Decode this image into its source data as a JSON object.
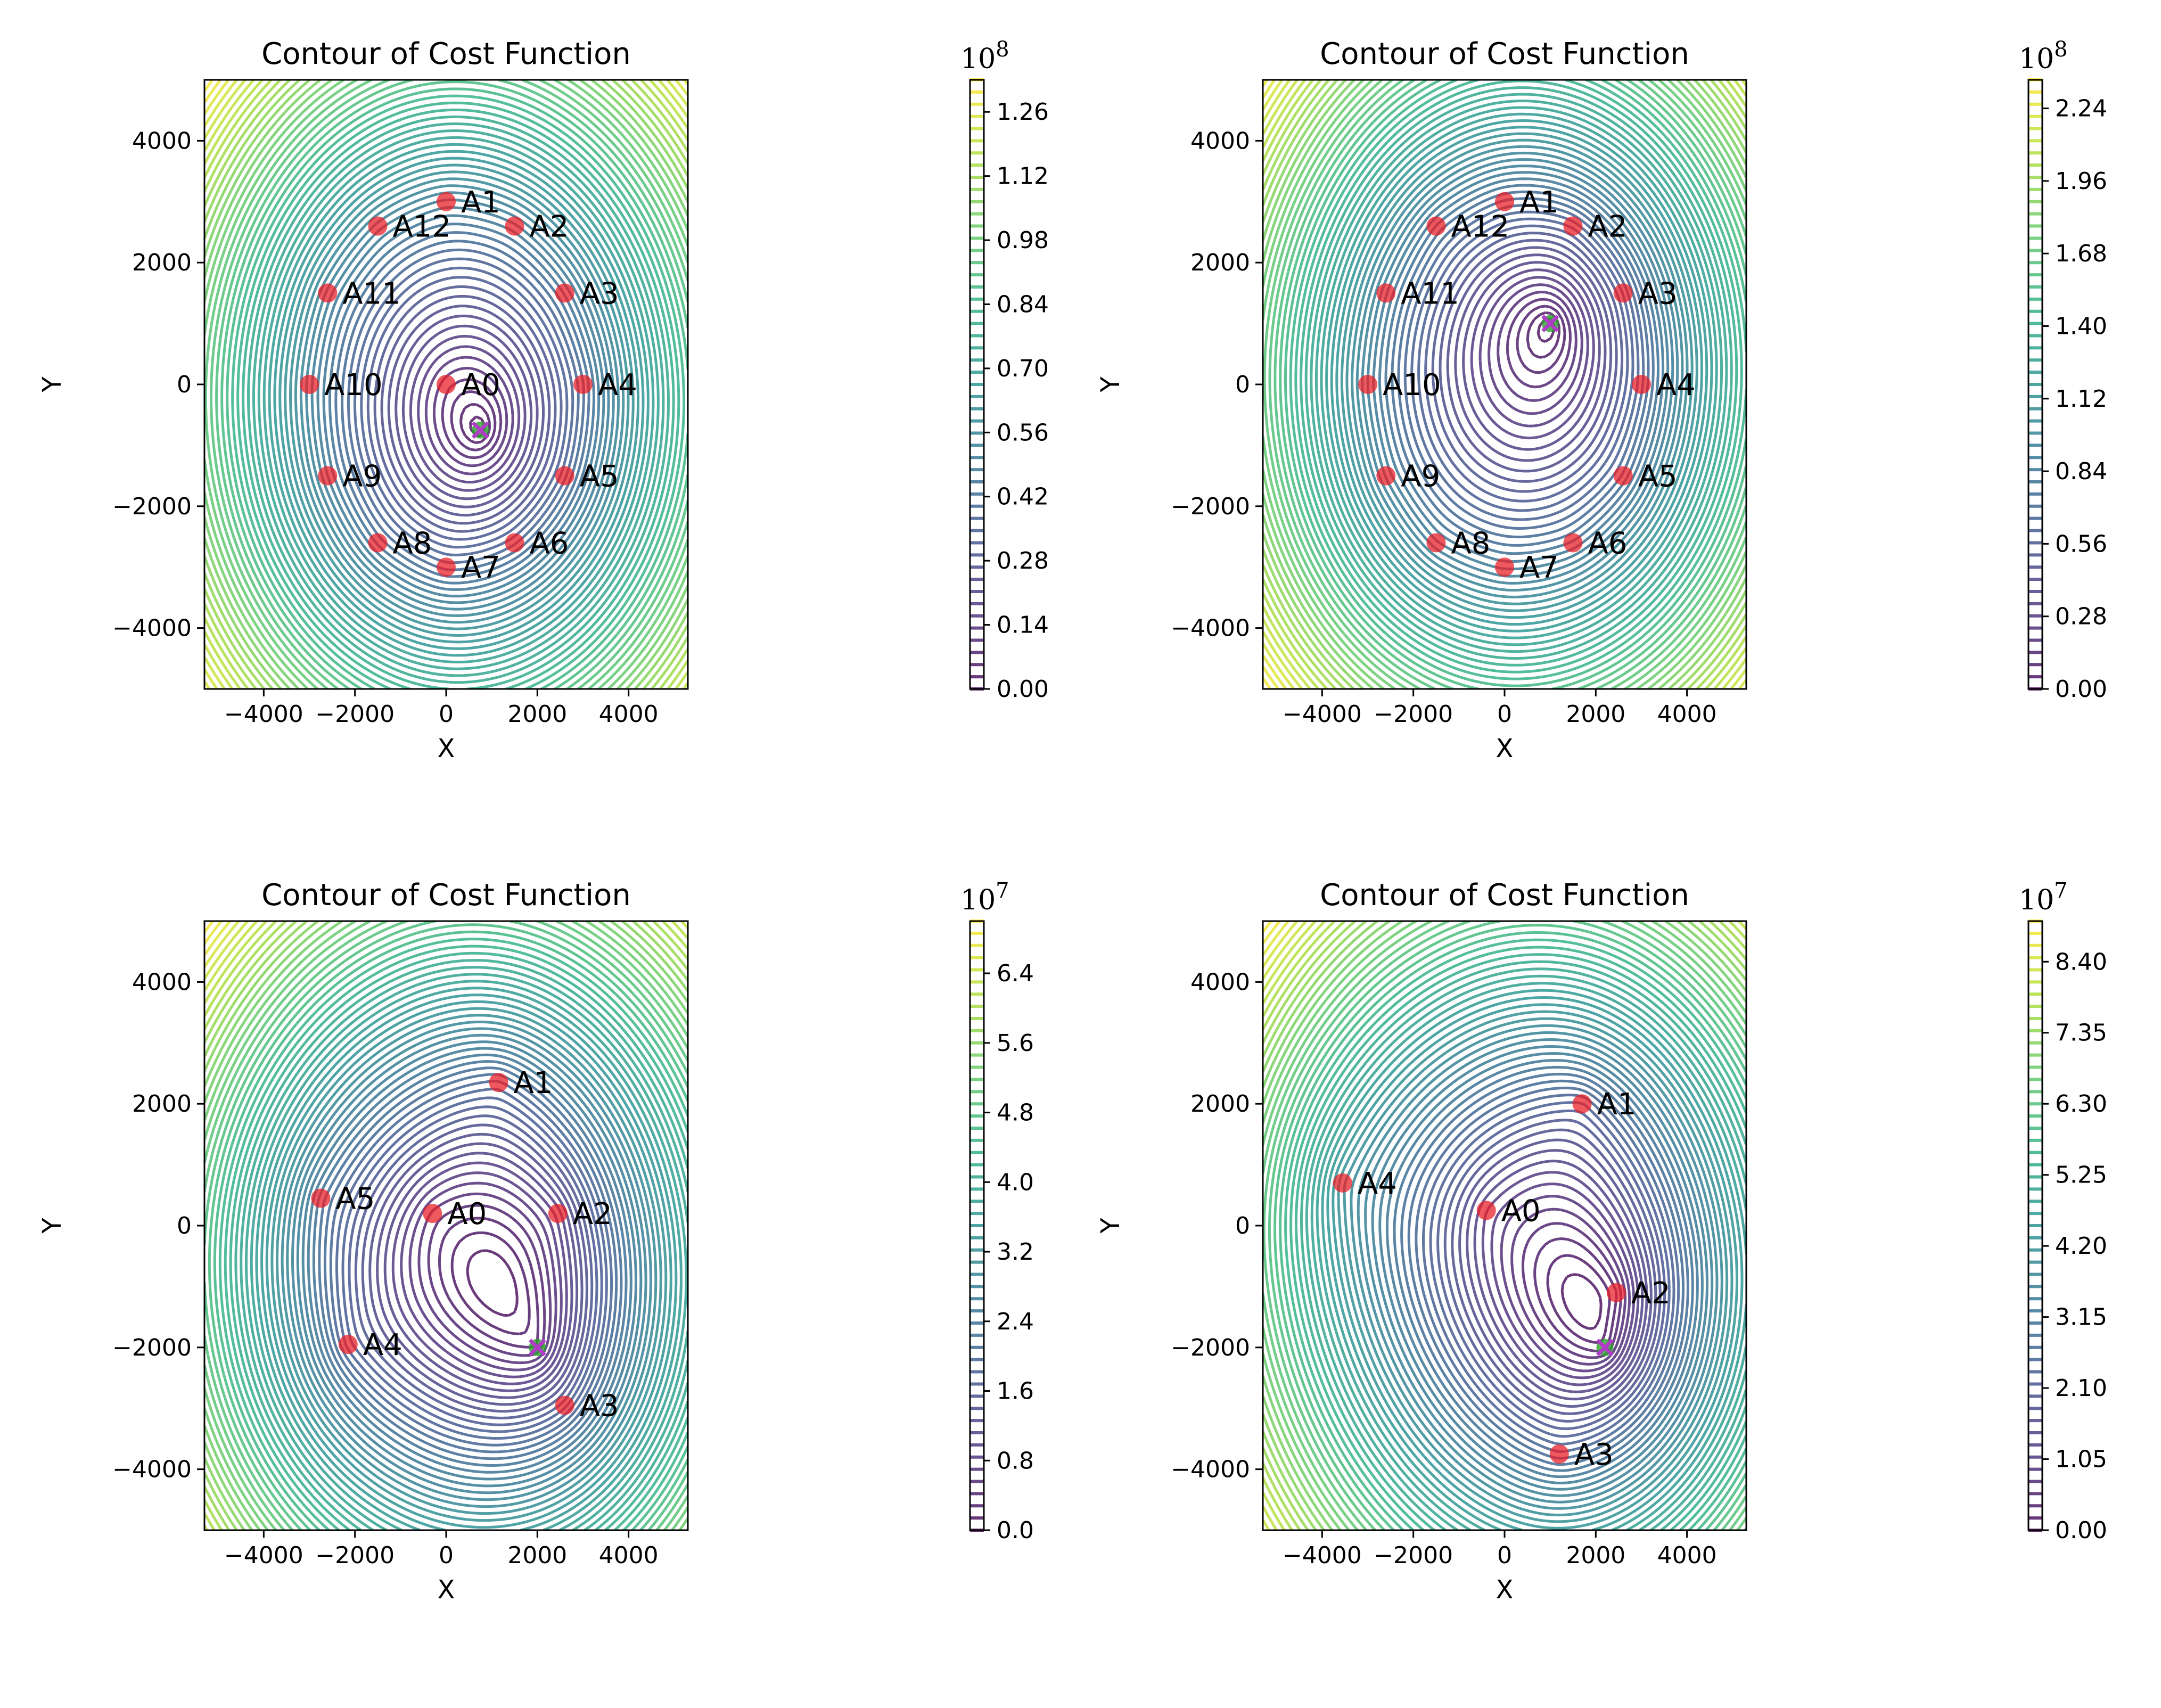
{
  "figure": {
    "background": "#ffffff"
  },
  "chart_data": [
    {
      "type": "contour",
      "title": "Contour of Cost Function",
      "xlabel": "X",
      "ylabel": "Y",
      "xlim": [
        -5300,
        5300
      ],
      "ylim": [
        -5000,
        5000
      ],
      "xticks": [
        -4000,
        -2000,
        0,
        2000,
        4000
      ],
      "xtick_labels": [
        "−4000",
        "−2000",
        "0",
        "2000",
        "4000"
      ],
      "yticks": [
        -4000,
        -2000,
        0,
        2000,
        4000
      ],
      "ytick_labels": [
        "−4000",
        "−2000",
        "0",
        "2000",
        "4000"
      ],
      "colorbar": {
        "scale_base": "10",
        "scale_exp": "8",
        "vmin": 0.0,
        "vmax": 1.33,
        "ticks": [
          0.0,
          0.14,
          0.28,
          0.42,
          0.56,
          0.7,
          0.84,
          0.98,
          1.12,
          1.26
        ],
        "tick_labels": [
          "0.00",
          "0.14",
          "0.28",
          "0.42",
          "0.56",
          "0.70",
          "0.84",
          "0.98",
          "1.12",
          "1.26"
        ]
      },
      "minimum": {
        "x": 750,
        "y": -750
      },
      "points": [
        {
          "label": "A0",
          "x": 0,
          "y": 0
        },
        {
          "label": "A1",
          "x": 0,
          "y": 3000
        },
        {
          "label": "A2",
          "x": 1500,
          "y": 2600
        },
        {
          "label": "A3",
          "x": 2600,
          "y": 1500
        },
        {
          "label": "A4",
          "x": 3000,
          "y": 0
        },
        {
          "label": "A5",
          "x": 2600,
          "y": -1500
        },
        {
          "label": "A6",
          "x": 1500,
          "y": -2600
        },
        {
          "label": "A7",
          "x": 0,
          "y": -3000
        },
        {
          "label": "A8",
          "x": -1500,
          "y": -2600
        },
        {
          "label": "A9",
          "x": -2600,
          "y": -1500
        },
        {
          "label": "A10",
          "x": -3000,
          "y": 0
        },
        {
          "label": "A11",
          "x": -2600,
          "y": 1500
        },
        {
          "label": "A12",
          "x": -1500,
          "y": 2600
        }
      ]
    },
    {
      "type": "contour",
      "title": "Contour of Cost Function",
      "xlabel": "X",
      "ylabel": "Y",
      "xlim": [
        -5300,
        5300
      ],
      "ylim": [
        -5000,
        5000
      ],
      "xticks": [
        -4000,
        -2000,
        0,
        2000,
        4000
      ],
      "xtick_labels": [
        "−4000",
        "−2000",
        "0",
        "2000",
        "4000"
      ],
      "yticks": [
        -4000,
        -2000,
        0,
        2000,
        4000
      ],
      "ytick_labels": [
        "−4000",
        "−2000",
        "0",
        "2000",
        "4000"
      ],
      "colorbar": {
        "scale_base": "10",
        "scale_exp": "8",
        "vmin": 0.0,
        "vmax": 2.35,
        "ticks": [
          0.0,
          0.28,
          0.56,
          0.84,
          1.12,
          1.4,
          1.68,
          1.96,
          2.24
        ],
        "tick_labels": [
          "0.00",
          "0.28",
          "0.56",
          "0.84",
          "1.12",
          "1.40",
          "1.68",
          "1.96",
          "2.24"
        ]
      },
      "minimum": {
        "x": 1000,
        "y": 1000
      },
      "points": [
        {
          "label": "A1",
          "x": 0,
          "y": 3000
        },
        {
          "label": "A2",
          "x": 1500,
          "y": 2600
        },
        {
          "label": "A3",
          "x": 2600,
          "y": 1500
        },
        {
          "label": "A4",
          "x": 3000,
          "y": 0
        },
        {
          "label": "A5",
          "x": 2600,
          "y": -1500
        },
        {
          "label": "A6",
          "x": 1500,
          "y": -2600
        },
        {
          "label": "A7",
          "x": 0,
          "y": -3000
        },
        {
          "label": "A8",
          "x": -1500,
          "y": -2600
        },
        {
          "label": "A9",
          "x": -2600,
          "y": -1500
        },
        {
          "label": "A10",
          "x": -3000,
          "y": 0
        },
        {
          "label": "A11",
          "x": -2600,
          "y": 1500
        },
        {
          "label": "A12",
          "x": -1500,
          "y": 2600
        }
      ]
    },
    {
      "type": "contour",
      "title": "Contour of Cost Function",
      "xlabel": "X",
      "ylabel": "Y",
      "xlim": [
        -5300,
        5300
      ],
      "ylim": [
        -5000,
        5000
      ],
      "xticks": [
        -4000,
        -2000,
        0,
        2000,
        4000
      ],
      "xtick_labels": [
        "−4000",
        "−2000",
        "0",
        "2000",
        "4000"
      ],
      "yticks": [
        -4000,
        -2000,
        0,
        2000,
        4000
      ],
      "ytick_labels": [
        "−4000",
        "−2000",
        "0",
        "2000",
        "4000"
      ],
      "colorbar": {
        "scale_base": "10",
        "scale_exp": "7",
        "vmin": 0.0,
        "vmax": 7.0,
        "ticks": [
          0.0,
          0.8,
          1.6,
          2.4,
          3.2,
          4.0,
          4.8,
          5.6,
          6.4
        ],
        "tick_labels": [
          "0.0",
          "0.8",
          "1.6",
          "2.4",
          "3.2",
          "4.0",
          "4.8",
          "5.6",
          "6.4"
        ]
      },
      "minimum": {
        "x": 2000,
        "y": -2000
      },
      "points": [
        {
          "label": "A0",
          "x": -300,
          "y": 200
        },
        {
          "label": "A1",
          "x": 1150,
          "y": 2350
        },
        {
          "label": "A2",
          "x": 2450,
          "y": 200
        },
        {
          "label": "A3",
          "x": 2600,
          "y": -2950
        },
        {
          "label": "A4",
          "x": -2150,
          "y": -1950
        },
        {
          "label": "A5",
          "x": -2750,
          "y": 450
        }
      ]
    },
    {
      "type": "contour",
      "title": "Contour of Cost Function",
      "xlabel": "X",
      "ylabel": "Y",
      "xlim": [
        -5300,
        5300
      ],
      "ylim": [
        -5000,
        5000
      ],
      "xticks": [
        -4000,
        -2000,
        0,
        2000,
        4000
      ],
      "xtick_labels": [
        "−4000",
        "−2000",
        "0",
        "2000",
        "4000"
      ],
      "yticks": [
        -4000,
        -2000,
        0,
        2000,
        4000
      ],
      "ytick_labels": [
        "−4000",
        "−2000",
        "0",
        "2000",
        "4000"
      ],
      "colorbar": {
        "scale_base": "10",
        "scale_exp": "7",
        "vmin": 0.0,
        "vmax": 9.0,
        "ticks": [
          0.0,
          1.05,
          2.1,
          3.15,
          4.2,
          5.25,
          6.3,
          7.35,
          8.4
        ],
        "tick_labels": [
          "0.00",
          "1.05",
          "2.10",
          "3.15",
          "4.20",
          "5.25",
          "6.30",
          "7.35",
          "8.40"
        ]
      },
      "minimum": {
        "x": 2200,
        "y": -2000
      },
      "points": [
        {
          "label": "A0",
          "x": -400,
          "y": 250
        },
        {
          "label": "A1",
          "x": 1700,
          "y": 2000
        },
        {
          "label": "A2",
          "x": 2450,
          "y": -1100
        },
        {
          "label": "A3",
          "x": 1200,
          "y": -3750
        },
        {
          "label": "A4",
          "x": -3550,
          "y": 700
        }
      ]
    }
  ]
}
